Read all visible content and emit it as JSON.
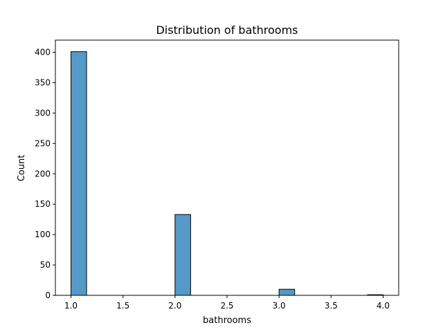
{
  "chart_data": {
    "type": "bar",
    "title": "Distribution of bathrooms",
    "xlabel": "bathrooms",
    "ylabel": "Count",
    "xlim": [
      0.85,
      4.15
    ],
    "ylim": [
      0,
      420
    ],
    "x_ticks": [
      1.0,
      1.5,
      2.0,
      2.5,
      3.0,
      3.5,
      4.0
    ],
    "x_tick_labels": [
      "1.0",
      "1.5",
      "2.0",
      "2.5",
      "3.0",
      "3.5",
      "4.0"
    ],
    "y_ticks": [
      0,
      50,
      100,
      150,
      200,
      250,
      300,
      350,
      400
    ],
    "y_tick_labels": [
      "0",
      "50",
      "100",
      "150",
      "200",
      "250",
      "300",
      "350",
      "400"
    ],
    "bar_width": 0.15,
    "bins": [
      {
        "start": 1.0,
        "end": 1.15,
        "value": 401
      },
      {
        "start": 2.0,
        "end": 2.15,
        "value": 133
      },
      {
        "start": 3.0,
        "end": 3.15,
        "value": 10
      },
      {
        "start": 3.85,
        "end": 4.0,
        "value": 1
      }
    ],
    "bar_color": "#5499c7",
    "edge_color": "#000000",
    "grid": false,
    "legend": "none"
  }
}
